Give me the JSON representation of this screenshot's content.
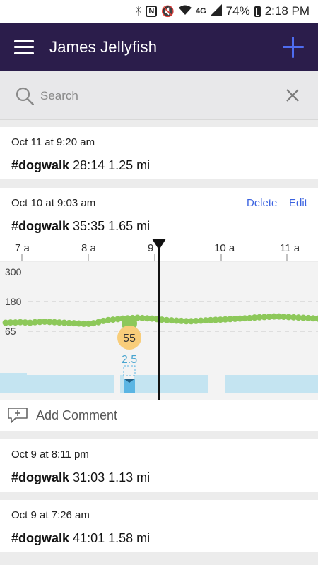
{
  "status_bar": {
    "icons": [
      "bluetooth-icon",
      "nfc-icon",
      "mute-icon",
      "wifi-icon",
      "lte-icon",
      "signal-icon",
      "battery-icon"
    ],
    "network": "4G",
    "battery": "74%",
    "time": "2:18 PM"
  },
  "app_bar": {
    "title": "James Jellyfish",
    "menu_icon": "hamburger-menu-icon",
    "add_icon": "plus-icon",
    "accent": "#4e6cf0",
    "background": "#2b1d4b"
  },
  "search": {
    "placeholder": "Search",
    "value": ""
  },
  "activities": [
    {
      "date": "Oct 11 at 9:20 am",
      "tag": "#dogwalk",
      "duration": "28:14",
      "distance": "1.25 mi"
    },
    {
      "date": "Oct 10 at 9:03 am",
      "tag": "#dogwalk",
      "duration": "35:35",
      "distance": "1.65 mi",
      "actions": {
        "delete": "Delete",
        "edit": "Edit"
      },
      "expanded": true
    },
    {
      "date": "Oct 9 at 8:11 pm",
      "tag": "#dogwalk",
      "duration": "31:03",
      "distance": "1.13 mi"
    },
    {
      "date": "Oct 9 at 7:26 am",
      "tag": "#dogwalk",
      "duration": "41:01",
      "distance": "1.58 mi"
    }
  ],
  "chart_data": {
    "type": "line",
    "x_ticks": [
      "7 a",
      "8 a",
      "9",
      "10 a",
      "11 a"
    ],
    "y_ticks": [
      "300",
      "180",
      "65"
    ],
    "series": [
      {
        "values": [
          98,
          99,
          99,
          100,
          99,
          98,
          100,
          101,
          102,
          101,
          100,
          99,
          98,
          97,
          96,
          95,
          94,
          94,
          96,
          100,
          105,
          108,
          110,
          112,
          114,
          115,
          116,
          117,
          116,
          115,
          114,
          112,
          110,
          108,
          107,
          106,
          105,
          104,
          104,
          105,
          106,
          107,
          108,
          109,
          110,
          111,
          112,
          113,
          114,
          115,
          116,
          118,
          119,
          120,
          121,
          122,
          122,
          121,
          120,
          119,
          118,
          117,
          116,
          115,
          114
        ],
        "color": "#8dc85a"
      }
    ],
    "cursor_value": "55",
    "activity_value": "2.5",
    "colors": {
      "heart": "#8dc85a",
      "badge": "#f8cd7a",
      "activity": "#c4e4f1",
      "activity_highlight": "#5bb5e3"
    }
  },
  "comment": {
    "label": "Add Comment",
    "icon": "add-comment-icon"
  }
}
